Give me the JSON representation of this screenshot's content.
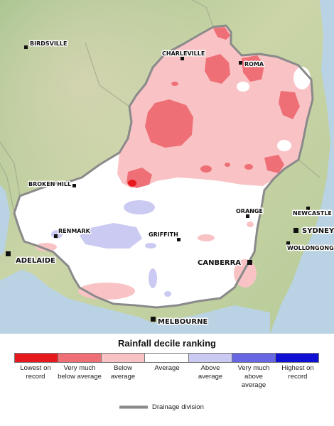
{
  "map": {
    "places": [
      {
        "name": "BIRDSVILLE"
      },
      {
        "name": "CHARLEVILLE"
      },
      {
        "name": "ROMA"
      },
      {
        "name": "BROKEN HILL"
      },
      {
        "name": "ORANGE"
      },
      {
        "name": "NEWCASTLE"
      },
      {
        "name": "SYDNEY"
      },
      {
        "name": "RENMARK"
      },
      {
        "name": "GRIFFITH"
      },
      {
        "name": "WOLLONGONG"
      },
      {
        "name": "ADELAIDE"
      },
      {
        "name": "CANBERRA"
      },
      {
        "name": "MELBOURNE"
      }
    ]
  },
  "legend": {
    "title": "Rainfall decile ranking",
    "categories": [
      {
        "label": "Lowest on record",
        "color": "#e8191c"
      },
      {
        "label": "Very much below average",
        "color": "#ee6f75"
      },
      {
        "label": "Below average",
        "color": "#f9c3c5"
      },
      {
        "label": "Average",
        "color": "#ffffff"
      },
      {
        "label": "Above average",
        "color": "#cbcaf2"
      },
      {
        "label": "Very much above average",
        "color": "#6767e3"
      },
      {
        "label": "Highest on record",
        "color": "#1010d5"
      }
    ],
    "division_label": "Drainage division"
  }
}
